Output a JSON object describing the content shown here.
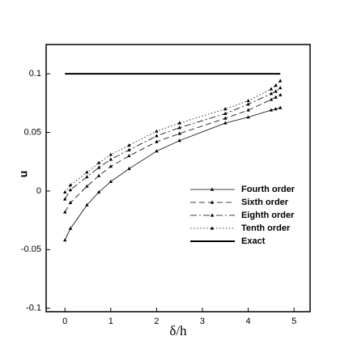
{
  "chart_data": {
    "type": "line",
    "xlabel": "δ/h",
    "ylabel": "u",
    "xlim": [
      -0.41,
      5.35
    ],
    "ylim": [
      -0.103,
      0.125
    ],
    "xticks": [
      0,
      1,
      2,
      3,
      4,
      5
    ],
    "yticks": [
      -0.1,
      -0.05,
      0,
      0.05,
      0.1
    ],
    "legend": "lower-right",
    "series": [
      {
        "name": "Fourth order",
        "color": "#000000",
        "linestyle": "solid",
        "marker": "triangle",
        "x": [
          0,
          0.12,
          0.48,
          0.74,
          1.0,
          1.4,
          2.0,
          2.5,
          3.5,
          4.0,
          4.5,
          4.6,
          4.7
        ],
        "values": [
          -0.042,
          -0.032,
          -0.012,
          -0.001,
          0.008,
          0.019,
          0.034,
          0.043,
          0.058,
          0.063,
          0.069,
          0.07,
          0.071
        ]
      },
      {
        "name": "Sixth order",
        "color": "#000000",
        "linestyle": "dashed",
        "marker": "triangle",
        "x": [
          0,
          0.12,
          0.48,
          0.74,
          1.0,
          1.4,
          2.0,
          2.5,
          3.5,
          4.0,
          4.5,
          4.6,
          4.7
        ],
        "values": [
          -0.018,
          -0.01,
          0.004,
          0.013,
          0.021,
          0.03,
          0.042,
          0.049,
          0.062,
          0.069,
          0.078,
          0.08,
          0.082
        ]
      },
      {
        "name": "Eighth order",
        "color": "#000000",
        "linestyle": "dashdot",
        "marker": "triangle",
        "x": [
          0,
          0.12,
          0.48,
          0.74,
          1.0,
          1.4,
          2.0,
          2.5,
          3.5,
          4.0,
          4.5,
          4.6,
          4.7
        ],
        "values": [
          -0.007,
          0.001,
          0.012,
          0.02,
          0.027,
          0.035,
          0.047,
          0.054,
          0.066,
          0.074,
          0.083,
          0.085,
          0.088
        ]
      },
      {
        "name": "Tenth order",
        "color": "#000000",
        "linestyle": "dotted",
        "marker": "triangle",
        "x": [
          0,
          0.12,
          0.48,
          0.74,
          1.0,
          1.4,
          2.0,
          2.5,
          3.5,
          4.0,
          4.5,
          4.6,
          4.7
        ],
        "values": [
          -0.001,
          0.005,
          0.016,
          0.024,
          0.031,
          0.039,
          0.051,
          0.058,
          0.07,
          0.077,
          0.087,
          0.09,
          0.094
        ]
      },
      {
        "name": "Exact",
        "color": "#000000",
        "linestyle": "solid",
        "marker": "none",
        "linewidth": 2,
        "x": [
          0,
          4.7
        ],
        "values": [
          0.1,
          0.1
        ]
      }
    ]
  }
}
